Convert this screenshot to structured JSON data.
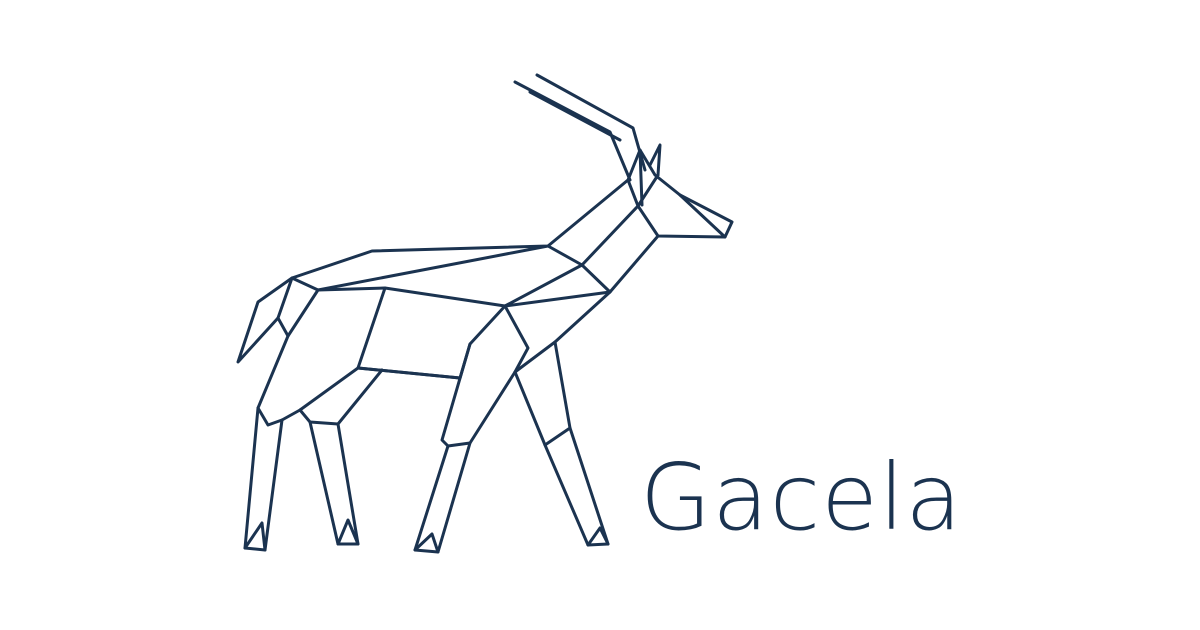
{
  "brand": {
    "name": "Gacela",
    "colors": {
      "ink": "#1b3350",
      "background": "#ffffff"
    },
    "logo_icon": "geometric-gazelle-icon"
  }
}
